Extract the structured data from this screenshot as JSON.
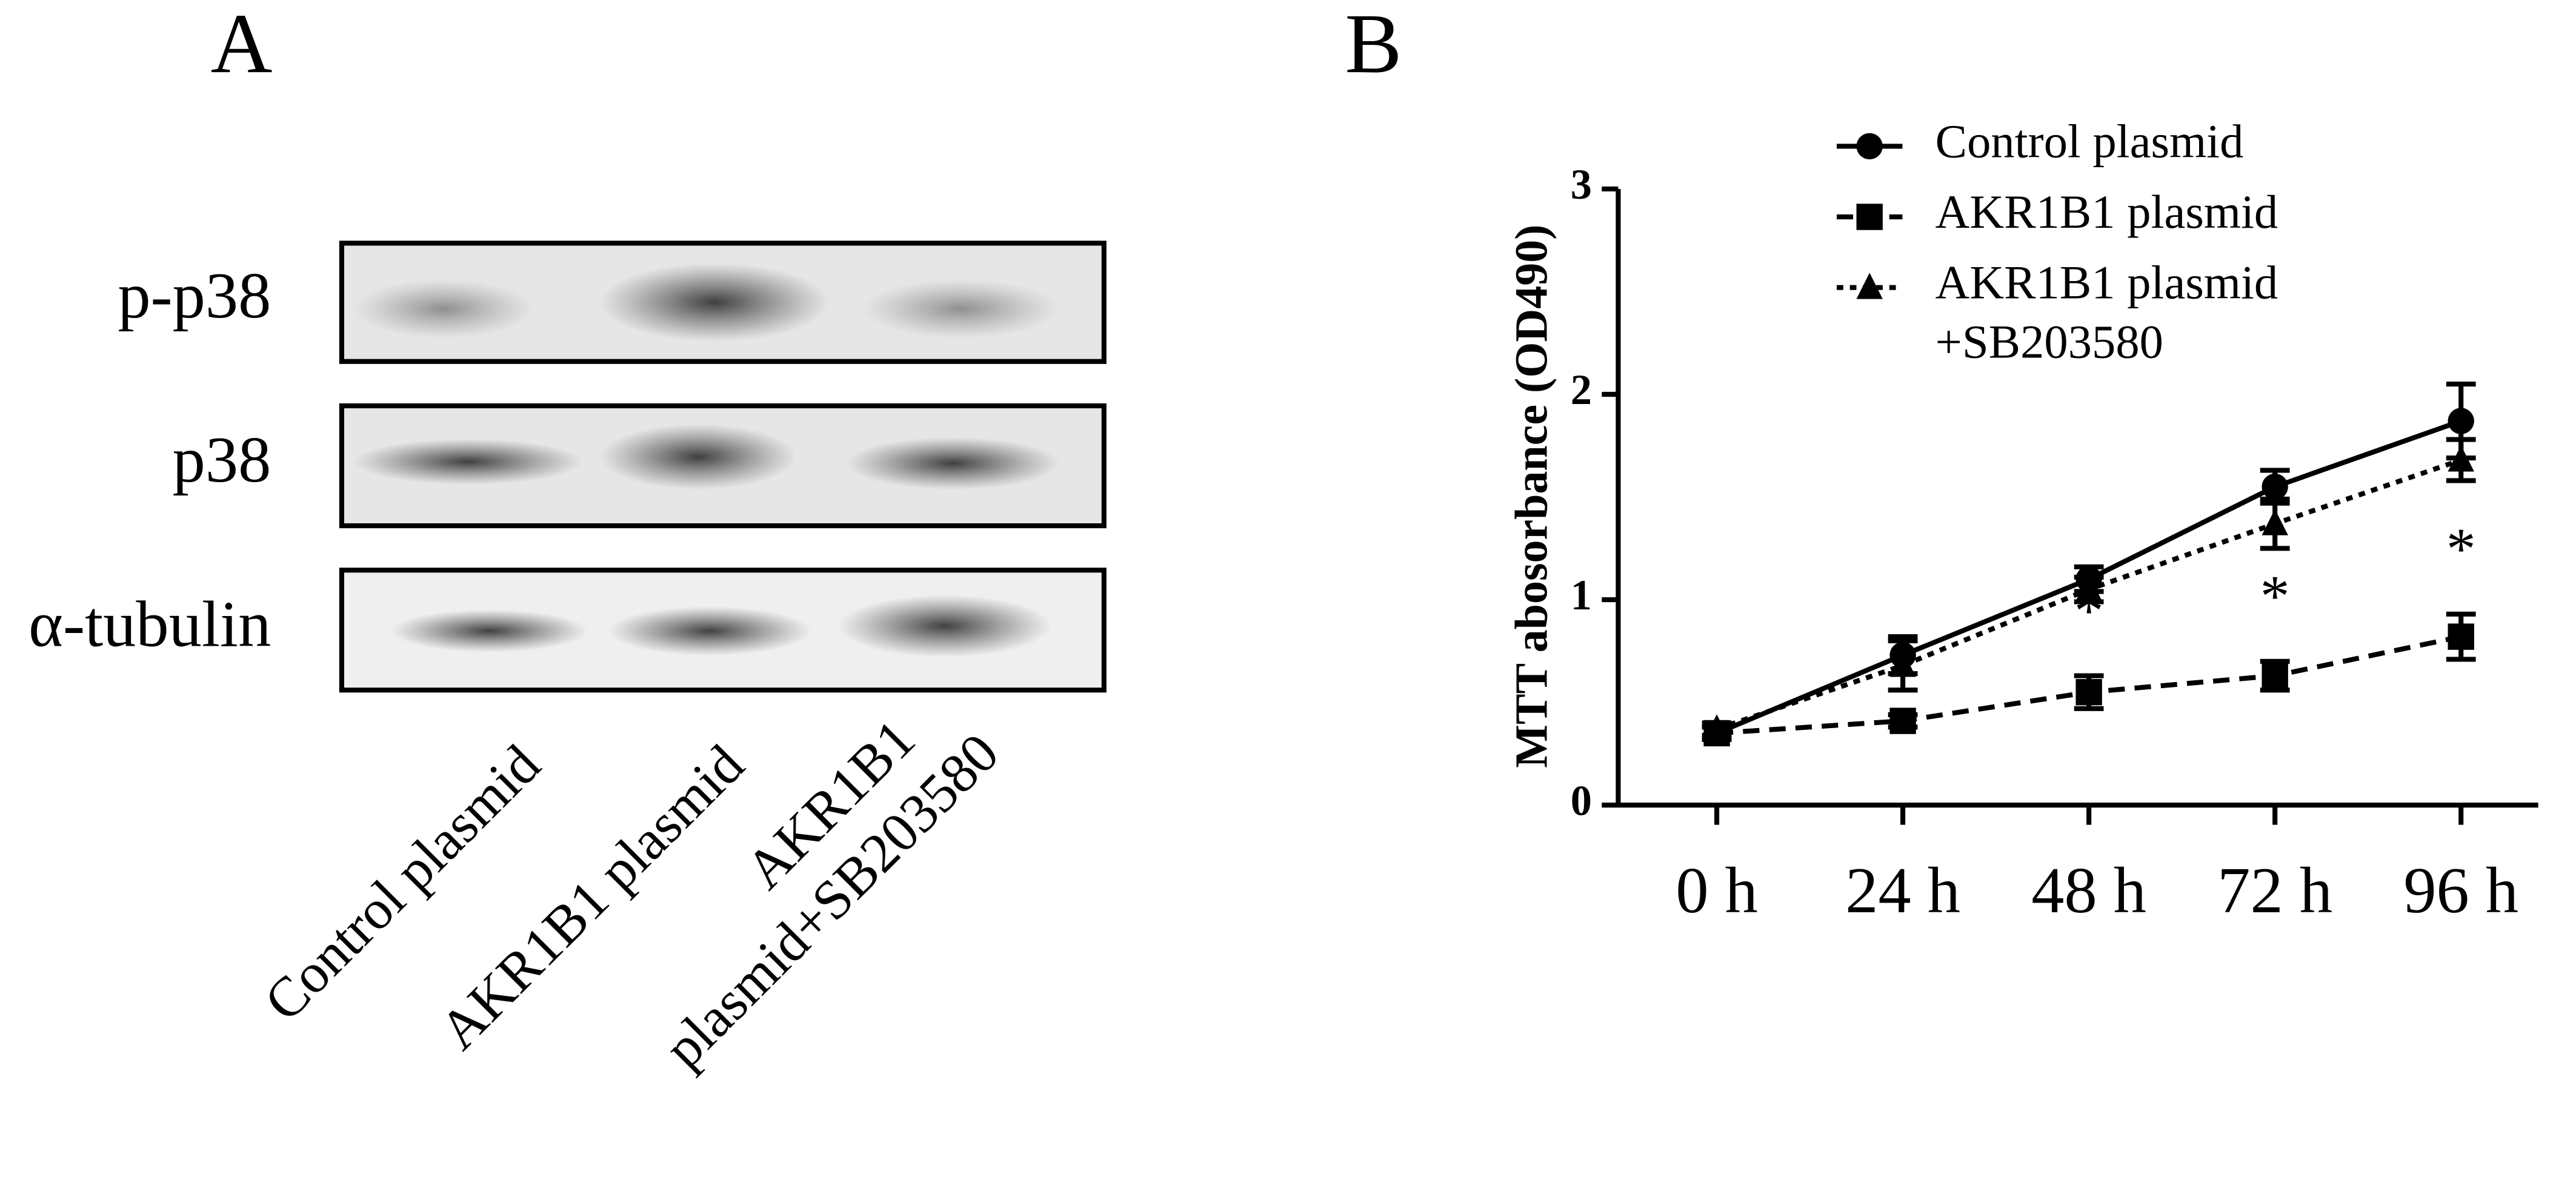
{
  "panel_a": {
    "label": "A",
    "rows": [
      "p-p38",
      "p38",
      "α-tubulin"
    ],
    "lanes": [
      [
        "Control plasmid"
      ],
      [
        "AKR1B1 plasmid"
      ],
      [
        "AKR1B1",
        "plasmid+SB203580"
      ]
    ]
  },
  "chart_data": {
    "type": "line",
    "panel_label": "B",
    "y_label": "MTT abosorbance (OD490)",
    "categories": [
      "0 h",
      "24 h",
      "48 h",
      "72 h",
      "96 h"
    ],
    "ylim": [
      0,
      3
    ],
    "yticks": [
      0,
      1,
      2,
      3
    ],
    "series": [
      {
        "name": "Control plasmid",
        "color": "#000000",
        "line": "solid",
        "marker": "circle",
        "values": [
          0.35,
          0.73,
          1.1,
          1.55,
          1.87
        ],
        "errors": [
          0.03,
          0.09,
          0.06,
          0.08,
          0.18
        ]
      },
      {
        "name": "AKR1B1 plasmid",
        "color": "#000000",
        "line": "dashed",
        "marker": "square",
        "values": [
          0.35,
          0.41,
          0.55,
          0.63,
          0.82
        ],
        "errors": [
          0.03,
          0.03,
          0.08,
          0.07,
          0.11
        ],
        "annotations": [
          null,
          null,
          "*",
          "*",
          "*"
        ]
      },
      {
        "name": "AKR1B1 plasmid +SB203580",
        "color": "#000000",
        "line": "dotted",
        "marker": "triangle",
        "values": [
          0.37,
          0.68,
          1.05,
          1.37,
          1.68
        ],
        "errors": [
          0.03,
          0.12,
          0.06,
          0.12,
          0.1
        ]
      }
    ]
  }
}
